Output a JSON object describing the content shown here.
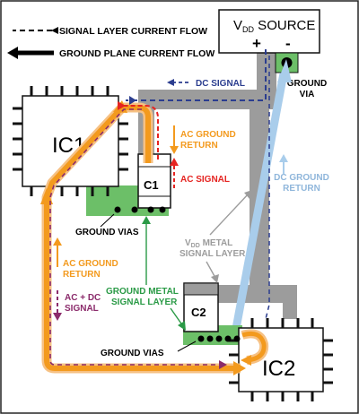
{
  "legend": {
    "signal_layer": "SIGNAL LAYER CURRENT FLOW",
    "ground_plane": "GROUND PLANE CURRENT FLOW"
  },
  "source": {
    "label": "V",
    "sub": "DD",
    "label_rest": " SOURCE",
    "plus": "+",
    "minus": "-"
  },
  "ground_via": {
    "line1": "GROUND",
    "line2": "VIA"
  },
  "dc_signal": "DC SIGNAL",
  "ic1": "IC1",
  "ic2": "IC2",
  "c1": "C1",
  "c2": "C2",
  "ac_ground_return_top": {
    "line1": "AC GROUND",
    "line2": "RETURN"
  },
  "ac_signal": "AC SIGNAL",
  "ground_vias_top": "GROUND VIAS",
  "vdd_metal": {
    "v": "V",
    "sub": "DD",
    "rest": " METAL",
    "line2": "SIGNAL LAYER"
  },
  "dc_ground_return": {
    "line1": "DC GROUND",
    "line2": "RETURN"
  },
  "ac_ground_return_left": {
    "line1": "AC GROUND",
    "line2": "RETURN"
  },
  "ac_dc_signal": {
    "line1": "AC + DC",
    "line2": "SIGNAL"
  },
  "ground_metal": {
    "line1": "GROUND METAL",
    "line2": "SIGNAL LAYER"
  },
  "ground_vias_bottom": "GROUND VIAS",
  "colors": {
    "orange": "#f39a1e",
    "orange_light": "#f6c184",
    "navy": "#2b3d8f",
    "red": "#e52421",
    "purple": "#8b2b6b",
    "green": "#6cbf68",
    "green_text": "#2a9a46",
    "gray_trace": "#9c9c9c",
    "light_blue": "#a9cdeb",
    "blue_text": "#8fb6db"
  }
}
